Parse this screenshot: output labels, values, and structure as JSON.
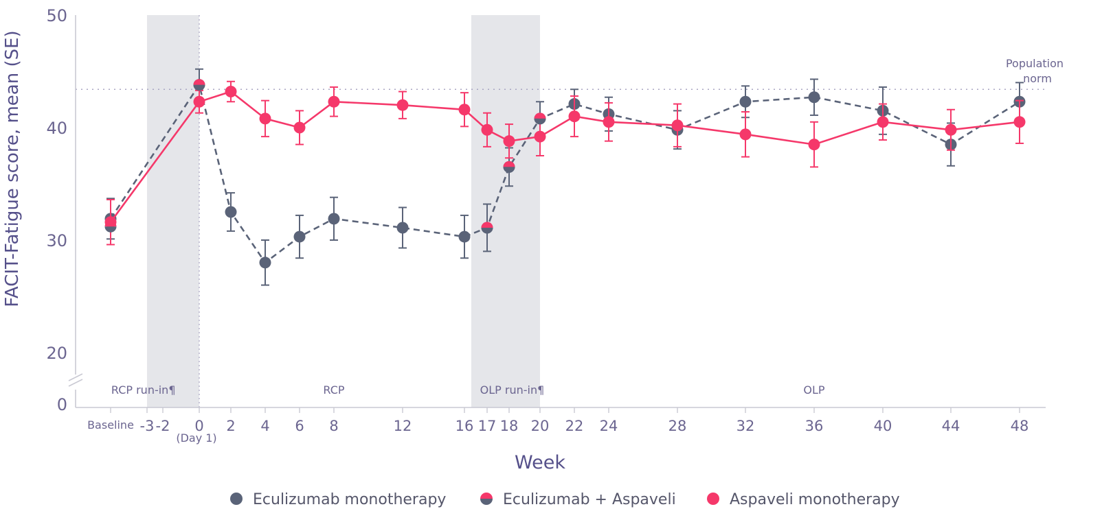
{
  "chart_data": {
    "type": "line",
    "ylabel": "FACIT-Fatigue score, mean (SE)",
    "xlabel": "Week",
    "ylim": [
      20,
      50
    ],
    "y_ticks": [
      "50",
      "40",
      "30",
      "20"
    ],
    "y_zero_label": "0",
    "reference_line": {
      "value": 43.4,
      "label_line1": "Population",
      "label_line2": "norm"
    },
    "x_ticks": [
      {
        "x": -5,
        "label": "Baseline"
      },
      {
        "x": -3,
        "label": "-3"
      },
      {
        "x": -2,
        "label": "-2"
      },
      {
        "x": 0,
        "label": "0"
      },
      {
        "x": 2,
        "label": "2"
      },
      {
        "x": 4,
        "label": "4"
      },
      {
        "x": 6,
        "label": "6"
      },
      {
        "x": 8,
        "label": "8"
      },
      {
        "x": 12,
        "label": "12"
      },
      {
        "x": 16,
        "label": "16"
      },
      {
        "x": 17,
        "label": "17"
      },
      {
        "x": 18,
        "label": "18"
      },
      {
        "x": 20,
        "label": "20"
      },
      {
        "x": 22,
        "label": "22"
      },
      {
        "x": 24,
        "label": "24"
      },
      {
        "x": 28,
        "label": "28"
      },
      {
        "x": 32,
        "label": "32"
      },
      {
        "x": 36,
        "label": "36"
      },
      {
        "x": 40,
        "label": "40"
      },
      {
        "x": 44,
        "label": "44"
      },
      {
        "x": 48,
        "label": "48"
      }
    ],
    "day1_label": "(Day 1)",
    "shaded_regions": [
      {
        "x0": -3,
        "x1": 0
      },
      {
        "x0": 16.3,
        "x1": 20
      }
    ],
    "phase_labels": [
      {
        "x": -3.2,
        "label": "RCP run-in¶"
      },
      {
        "x": 8,
        "label": "RCP"
      },
      {
        "x": 18.2,
        "label": "OLP run-in¶"
      },
      {
        "x": 36,
        "label": "OLP"
      }
    ],
    "series": [
      {
        "name": "Eculizumab monotherapy",
        "color": "#5a6378",
        "dashed": true,
        "points": [
          {
            "x": -5,
            "y": 31.9,
            "se": 1.8
          },
          {
            "x": 0,
            "y": 43.8,
            "se": 1.4
          },
          {
            "x": 2,
            "y": 32.5,
            "se": 1.7
          },
          {
            "x": 4,
            "y": 28.0,
            "se": 2.0
          },
          {
            "x": 6,
            "y": 30.3,
            "se": 1.9
          },
          {
            "x": 8,
            "y": 31.9,
            "se": 1.9
          },
          {
            "x": 12,
            "y": 31.1,
            "se": 1.8
          },
          {
            "x": 16,
            "y": 30.3,
            "se": 1.9
          },
          {
            "x": 17,
            "y": 31.1,
            "se": 2.1
          },
          {
            "x": 18,
            "y": 36.5,
            "se": 1.7
          },
          {
            "x": 20,
            "y": 40.8,
            "se": 1.5
          },
          {
            "x": 22,
            "y": 42.1,
            "se": 1.3
          },
          {
            "x": 24,
            "y": 41.2,
            "se": 1.5
          },
          {
            "x": 28,
            "y": 39.8,
            "se": 1.7
          },
          {
            "x": 32,
            "y": 42.3,
            "se": 1.4
          },
          {
            "x": 36,
            "y": 42.7,
            "se": 1.6
          },
          {
            "x": 40,
            "y": 41.5,
            "se": 2.1
          },
          {
            "x": 44,
            "y": 38.5,
            "se": 1.9
          },
          {
            "x": 48,
            "y": 42.3,
            "se": 1.7
          }
        ]
      },
      {
        "name": "Eculizumab + Aspaveli",
        "color": "#5a6378",
        "dashed": false,
        "half_marker": true,
        "points": [
          {
            "x": -5,
            "y": 31.2,
            "se": 1.8
          },
          {
            "x": 0,
            "y": 43.8,
            "se": 1.4
          },
          {
            "x": 17,
            "y": 31.1,
            "se": 2.1
          },
          {
            "x": 18,
            "y": 36.5,
            "se": 1.7
          },
          {
            "x": 20,
            "y": 40.8,
            "se": 1.5
          }
        ]
      },
      {
        "name": "Aspaveli monotherapy",
        "color": "#f5386a",
        "dashed": false,
        "points": [
          {
            "x": -5,
            "y": 31.6,
            "se": 2.0
          },
          {
            "x": 0,
            "y": 42.3,
            "se": 1.0
          },
          {
            "x": 2,
            "y": 43.2,
            "se": 0.9
          },
          {
            "x": 4,
            "y": 40.8,
            "se": 1.6
          },
          {
            "x": 6,
            "y": 40.0,
            "se": 1.5
          },
          {
            "x": 8,
            "y": 42.3,
            "se": 1.3
          },
          {
            "x": 12,
            "y": 42.0,
            "se": 1.2
          },
          {
            "x": 16,
            "y": 41.6,
            "se": 1.5
          },
          {
            "x": 17,
            "y": 39.8,
            "se": 1.5
          },
          {
            "x": 18,
            "y": 38.8,
            "se": 1.5
          },
          {
            "x": 20,
            "y": 39.2,
            "se": 1.7
          },
          {
            "x": 22,
            "y": 41.0,
            "se": 1.8
          },
          {
            "x": 24,
            "y": 40.5,
            "se": 1.7
          },
          {
            "x": 28,
            "y": 40.2,
            "se": 1.9
          },
          {
            "x": 32,
            "y": 39.4,
            "se": 2.0
          },
          {
            "x": 36,
            "y": 38.5,
            "se": 2.0
          },
          {
            "x": 40,
            "y": 40.5,
            "se": 1.6
          },
          {
            "x": 44,
            "y": 39.8,
            "se": 1.8
          },
          {
            "x": 48,
            "y": 40.5,
            "se": 1.9
          }
        ]
      }
    ],
    "legend": [
      {
        "label": "Eculizumab monotherapy",
        "marker": "grey"
      },
      {
        "label": "Eculizumab + Aspaveli",
        "marker": "half"
      },
      {
        "label": "Aspaveli monotherapy",
        "marker": "pink"
      }
    ]
  }
}
